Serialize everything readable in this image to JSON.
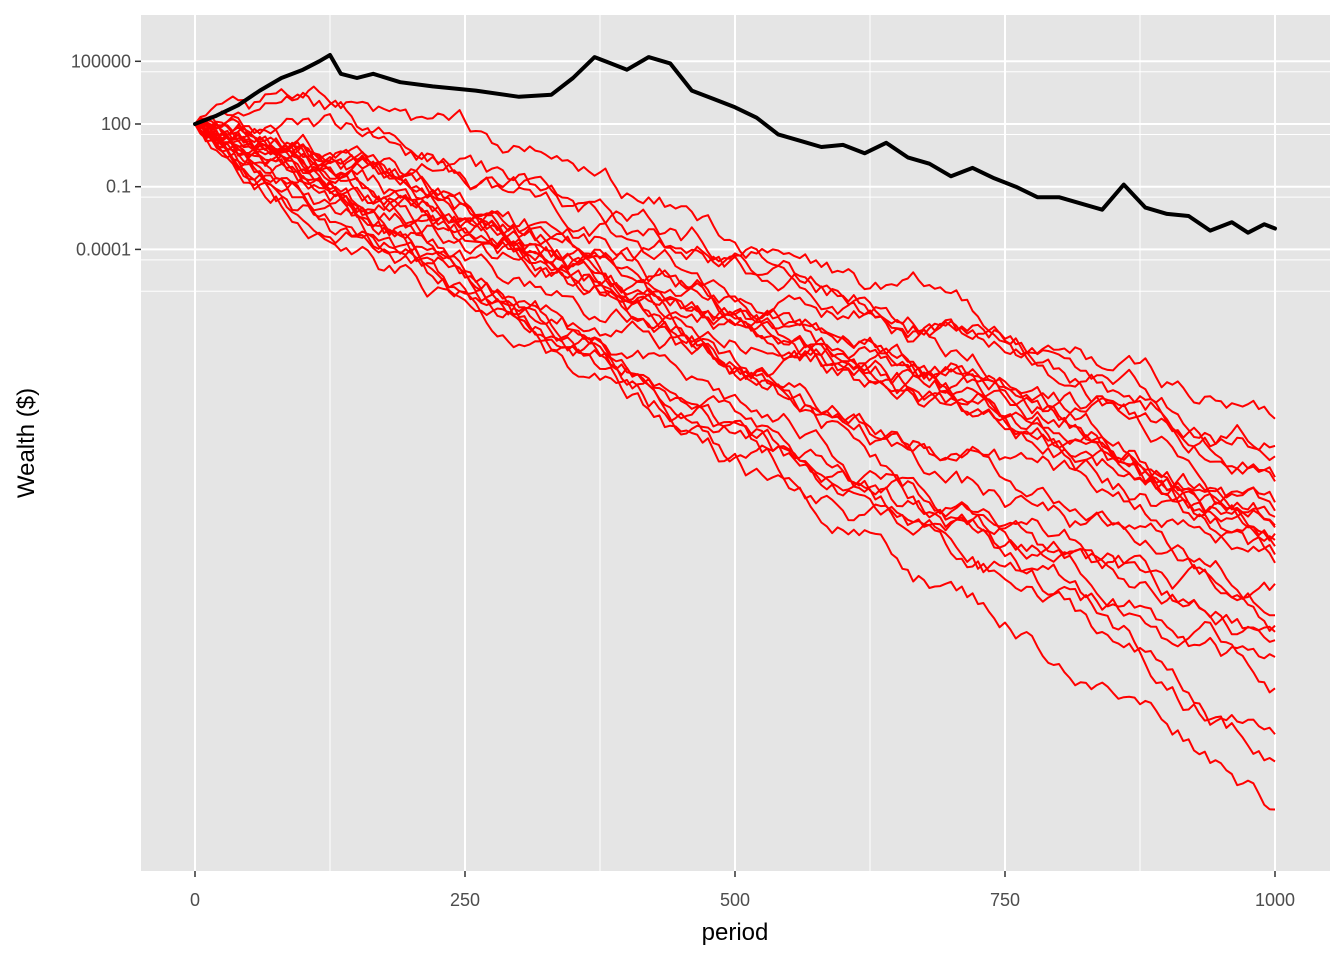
{
  "chart_data": {
    "type": "line",
    "title": "",
    "xlabel": "period",
    "ylabel": "Wealth ($)",
    "xlim": [
      -25,
      1025
    ],
    "ylim_log10": [
      -33.4,
      6.7
    ],
    "y_scale": "log10",
    "grid": true,
    "legend": "none",
    "x_ticks": [
      0,
      250,
      500,
      750,
      1000
    ],
    "y_ticks": [
      {
        "value": 0.0001,
        "label": "0.0001"
      },
      {
        "value": 0.1,
        "label": "0.1"
      },
      {
        "value": 100,
        "label": "100"
      },
      {
        "value": 100000,
        "label": "100000"
      }
    ],
    "colors": {
      "panel": "#e5e5e5",
      "grid": "#ffffff",
      "simulations": "#ff0000",
      "mean": "#000000"
    },
    "start_value": 100,
    "simulations": {
      "count": 25,
      "x_step": 5,
      "x_end": 1000,
      "final_log10": [
        -12.1,
        -13.4,
        -13.9,
        -14.9,
        -15.1,
        -16.1,
        -16.5,
        -16.8,
        -17.2,
        -17.3,
        -17.6,
        -17.9,
        -18.2,
        -18.6,
        -19.0,
        -20.0,
        -21.5,
        -22.0,
        -22.3,
        -22.7,
        -23.5,
        -25.0,
        -27.2,
        -28.5,
        -30.8
      ]
    },
    "mean_line": {
      "x": [
        0,
        20,
        40,
        60,
        80,
        100,
        115,
        125,
        135,
        150,
        165,
        190,
        220,
        260,
        300,
        330,
        350,
        370,
        385,
        400,
        420,
        440,
        460,
        480,
        500,
        520,
        540,
        560,
        580,
        600,
        620,
        640,
        660,
        680,
        700,
        720,
        740,
        760,
        780,
        800,
        820,
        840,
        860,
        880,
        900,
        920,
        940,
        960,
        975,
        990,
        1000
      ],
      "log10": [
        2.0,
        2.4,
        2.9,
        3.6,
        4.2,
        4.6,
        5.0,
        5.3,
        4.4,
        4.2,
        4.4,
        4.0,
        3.8,
        3.6,
        3.3,
        3.4,
        4.2,
        5.2,
        4.9,
        4.6,
        5.2,
        4.9,
        3.6,
        3.2,
        2.8,
        2.3,
        1.5,
        1.2,
        0.9,
        1.0,
        0.6,
        1.1,
        0.4,
        0.1,
        -0.5,
        -0.1,
        -0.6,
        -1.0,
        -1.5,
        -1.5,
        -1.8,
        -2.1,
        -0.9,
        -2.0,
        -2.3,
        -2.4,
        -3.1,
        -2.7,
        -3.2,
        -2.8,
        -3.0
      ]
    }
  }
}
